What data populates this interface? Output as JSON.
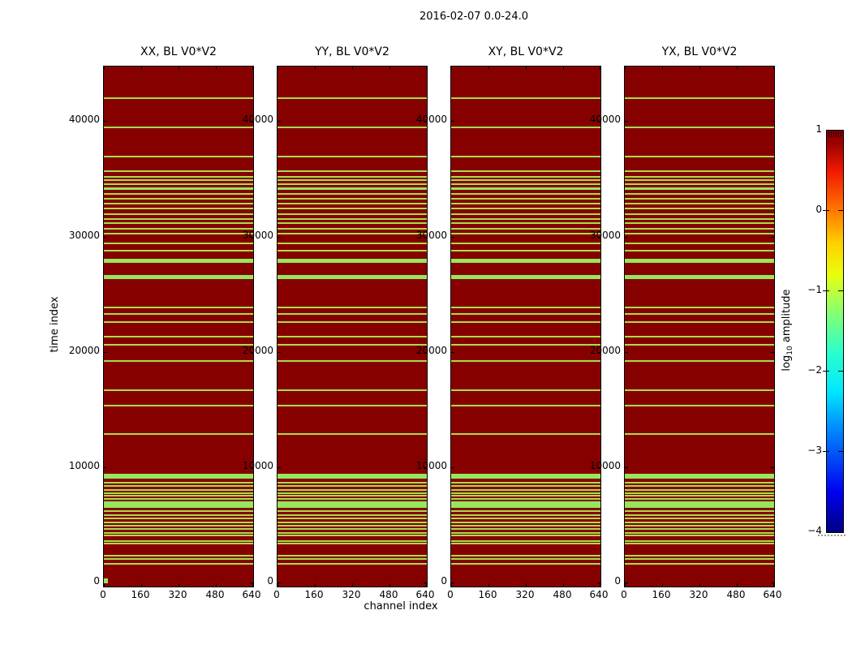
{
  "figure": {
    "title": "2016-02-07 0.0-24.0",
    "xlabel": "channel index",
    "ylabel": "time index",
    "colorbar_label": {
      "prefix": "log",
      "sub": "10",
      "suffix": " amplitude"
    }
  },
  "panels": [
    {
      "id": "xx",
      "title": "XX, BL V0*V2"
    },
    {
      "id": "yy",
      "title": "YY, BL V0*V2"
    },
    {
      "id": "xy",
      "title": "XY, BL V0*V2"
    },
    {
      "id": "yx",
      "title": "YX, BL V0*V2"
    }
  ],
  "axes": {
    "x_tick_labels": [
      "0",
      "160",
      "320",
      "480",
      "640"
    ],
    "x_tick_values": [
      0,
      160,
      320,
      480,
      640
    ],
    "y_tick_labels": [
      "0",
      "10000",
      "20000",
      "30000",
      "40000"
    ],
    "y_tick_values": [
      0,
      10000,
      20000,
      30000,
      40000
    ]
  },
  "colorbar": {
    "tick_labels": [
      "1",
      "0",
      "−1",
      "−2",
      "−3",
      "−4"
    ],
    "tick_values": [
      1,
      0,
      -1,
      -2,
      -3,
      -4
    ],
    "vmin": -4,
    "vmax": 1,
    "colormap": "jet"
  },
  "colors": {
    "background": "#ffffff",
    "heat_high": "#870000",
    "stripe_thin": "#a8dc4e",
    "stripe_bright": "#95e75e",
    "frame": "#000000"
  },
  "chart_data": {
    "type": "heatmap",
    "suptitle": "2016-02-07 0.0-24.0",
    "xlabel": "channel index",
    "ylabel": "time index",
    "colorbar_label": "log10 amplitude",
    "panels": [
      "XX, BL V0*V2",
      "YY, BL V0*V2",
      "XY, BL V0*V2",
      "YX, BL V0*V2"
    ],
    "xlim": [
      0,
      640
    ],
    "ylim": [
      0,
      45000
    ],
    "clim": [
      -4,
      1
    ],
    "colormap": "jet",
    "legend_position": "right-colorbar",
    "grid": false,
    "background_log10_amplitude": 1.0,
    "stripe_log10_amplitude": {
      "thin": -1.2,
      "bright": -1.6
    },
    "note": "All four polarization panels show the same pattern: dark-red (log10 amp ~1) field crossed by horizontal low-amplitude stripes at these time indices.",
    "stripes": [
      {
        "t": 42000,
        "h": 2,
        "level": "thin"
      },
      {
        "t": 39450,
        "h": 2,
        "level": "thin"
      },
      {
        "t": 36900,
        "h": 2,
        "level": "thin"
      },
      {
        "t": 35700,
        "h": 2,
        "level": "thin"
      },
      {
        "t": 35200,
        "h": 2,
        "level": "thin"
      },
      {
        "t": 34900,
        "h": 2,
        "level": "thin"
      },
      {
        "t": 34550,
        "h": 2,
        "level": "thin"
      },
      {
        "t": 34150,
        "h": 3,
        "level": "bright"
      },
      {
        "t": 33700,
        "h": 2,
        "level": "thin"
      },
      {
        "t": 33250,
        "h": 2,
        "level": "thin"
      },
      {
        "t": 32850,
        "h": 2,
        "level": "thin"
      },
      {
        "t": 32400,
        "h": 2,
        "level": "thin"
      },
      {
        "t": 31950,
        "h": 2,
        "level": "thin"
      },
      {
        "t": 31500,
        "h": 2,
        "level": "thin"
      },
      {
        "t": 31150,
        "h": 2,
        "level": "thin"
      },
      {
        "t": 30650,
        "h": 2,
        "level": "thin"
      },
      {
        "t": 30250,
        "h": 2,
        "level": "thin"
      },
      {
        "t": 29400,
        "h": 2,
        "level": "thin"
      },
      {
        "t": 28750,
        "h": 2,
        "level": "thin"
      },
      {
        "t": 27900,
        "h": 5,
        "level": "bright"
      },
      {
        "t": 26500,
        "h": 5,
        "level": "bright"
      },
      {
        "t": 23850,
        "h": 2,
        "level": "thin"
      },
      {
        "t": 23300,
        "h": 2,
        "level": "thin"
      },
      {
        "t": 22600,
        "h": 2,
        "level": "thin"
      },
      {
        "t": 21300,
        "h": 2,
        "level": "thin"
      },
      {
        "t": 20600,
        "h": 2,
        "level": "thin"
      },
      {
        "t": 19200,
        "h": 2,
        "level": "thin"
      },
      {
        "t": 16700,
        "h": 2,
        "level": "thin"
      },
      {
        "t": 15350,
        "h": 2,
        "level": "thin"
      },
      {
        "t": 12900,
        "h": 2,
        "level": "thin"
      },
      {
        "t": 9250,
        "h": 6,
        "level": "bright"
      },
      {
        "t": 8650,
        "h": 2,
        "level": "thin"
      },
      {
        "t": 8400,
        "h": 2,
        "level": "thin"
      },
      {
        "t": 8050,
        "h": 2,
        "level": "thin"
      },
      {
        "t": 7750,
        "h": 2,
        "level": "thin"
      },
      {
        "t": 7550,
        "h": 2,
        "level": "thin"
      },
      {
        "t": 7250,
        "h": 2,
        "level": "thin"
      },
      {
        "t": 6750,
        "h": 8,
        "level": "bright"
      },
      {
        "t": 6200,
        "h": 2,
        "level": "thin"
      },
      {
        "t": 5850,
        "h": 2,
        "level": "thin"
      },
      {
        "t": 5600,
        "h": 2,
        "level": "thin"
      },
      {
        "t": 5200,
        "h": 2,
        "level": "thin"
      },
      {
        "t": 4950,
        "h": 2,
        "level": "thin"
      },
      {
        "t": 4650,
        "h": 2,
        "level": "thin"
      },
      {
        "t": 4300,
        "h": 2,
        "level": "thin"
      },
      {
        "t": 4100,
        "h": 2,
        "level": "thin"
      },
      {
        "t": 3600,
        "h": 2,
        "level": "thin"
      },
      {
        "t": 3400,
        "h": 2,
        "level": "thin"
      },
      {
        "t": 2350,
        "h": 2,
        "level": "thin"
      },
      {
        "t": 2050,
        "h": 2,
        "level": "thin"
      },
      {
        "t": 1650,
        "h": 2,
        "level": "thin"
      }
    ],
    "corner_marker": {
      "panel": "XX, BL V0*V2",
      "t": 150,
      "x_range": [
        0,
        18
      ],
      "level": "bright"
    }
  }
}
